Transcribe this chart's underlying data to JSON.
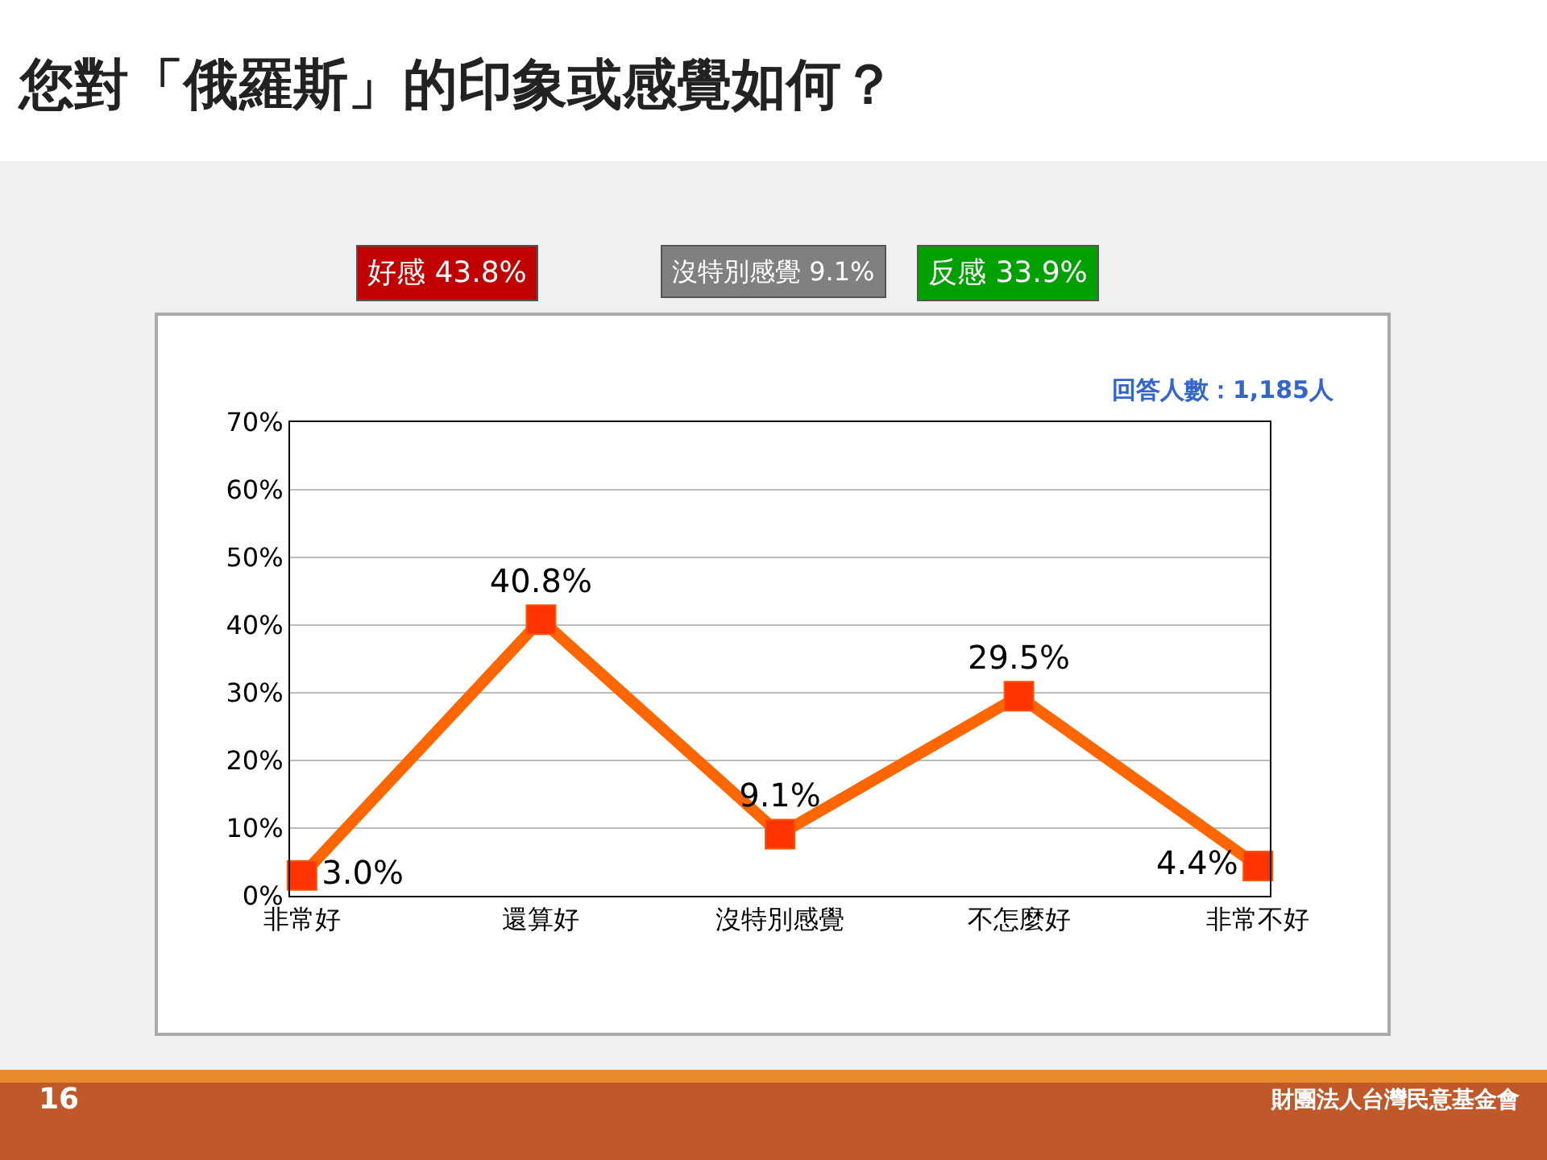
{
  "chart_data": {
    "type": "line",
    "title": "您對「俄羅斯」的印象或感覺如何？",
    "categories": [
      "非常好",
      "還算好",
      "沒特別感覺",
      "不怎麼好",
      "非常不好"
    ],
    "series": [
      {
        "color": "#ff6600",
        "values": [
          3.0,
          40.8,
          9.1,
          29.5,
          4.4
        ],
        "value_labels": [
          "3.0%",
          "40.8%",
          "9.1%",
          "29.5%",
          "4.4%"
        ]
      }
    ],
    "ylim": [
      0,
      70
    ],
    "yticks": [
      {
        "value": 0,
        "label": "0%"
      },
      {
        "value": 10,
        "label": "10%"
      },
      {
        "value": 20,
        "label": "20%"
      },
      {
        "value": 30,
        "label": "30%"
      },
      {
        "value": 40,
        "label": "40%"
      },
      {
        "value": 50,
        "label": "50%"
      },
      {
        "value": 60,
        "label": "60%"
      },
      {
        "value": 70,
        "label": "70%"
      }
    ],
    "grid": "y",
    "legend": false,
    "marker": "square",
    "line_style": "solid",
    "annotations": [
      "好感 43.8%",
      "沒特別感覺 9.1%",
      "反感 33.9%",
      "回答人數：1,185人",
      "16",
      "財團法人台灣民意基金會"
    ]
  }
}
